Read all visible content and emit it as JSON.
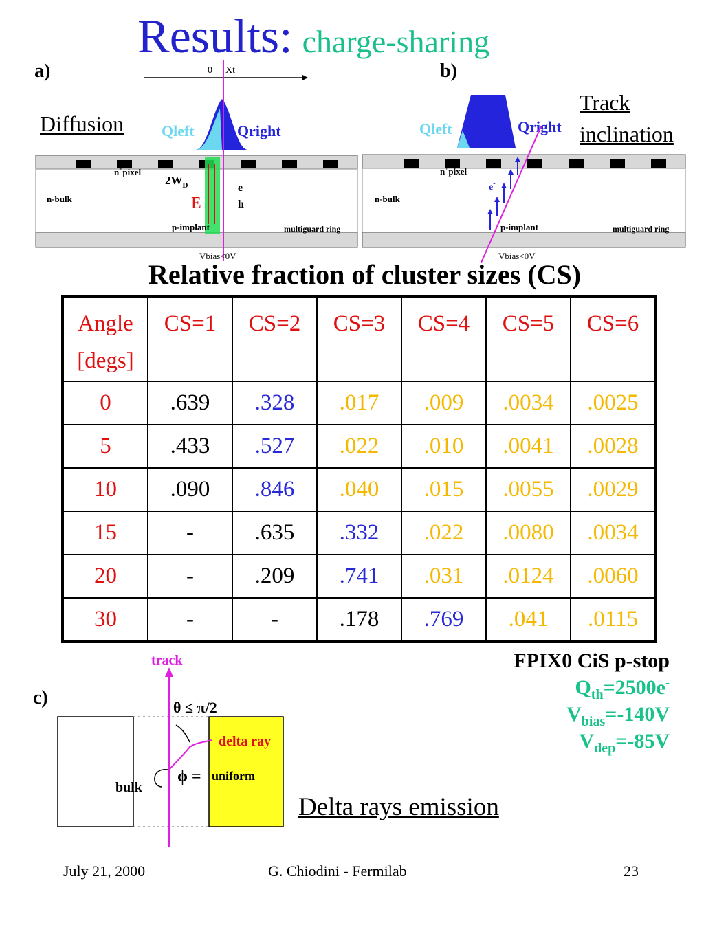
{
  "title": {
    "main": "Results:",
    "sub": "charge-sharing"
  },
  "panel_a": {
    "label": "a)",
    "caption": "Diffusion",
    "axis_zero": "0",
    "axis_label": "Xt",
    "qleft": "Qleft",
    "qright": "Qright",
    "npixel_n": "n",
    "npixel_plus": "+",
    "npixel_rest": "pixel",
    "nbulk": "n-bulk",
    "wd_main": "2W",
    "wd_sub": "D",
    "e_field": "E",
    "e_label": "e",
    "h_label": "h",
    "p_implant": "p-implant",
    "multiguard": "multiguard ring",
    "vbias": "Vbias<0V"
  },
  "panel_b": {
    "label": "b)",
    "caption_line1": "Track",
    "caption_line2": "inclination",
    "qleft": "Qleft",
    "qright": "Qright",
    "npixel_n": "n",
    "npixel_plus": "+",
    "npixel_rest": "pixel",
    "nbulk": "n-bulk",
    "e_minus": "e",
    "e_minus_sup": "-",
    "p_implant": "p-implant",
    "multiguard": "multiguard ring",
    "vbias": "Vbias<0V"
  },
  "table": {
    "title": "Relative fraction of cluster sizes (CS)",
    "headers": [
      "Angle [degs]",
      "CS=1",
      "CS=2",
      "CS=3",
      "CS=4",
      "CS=5",
      "CS=6"
    ],
    "header_angle_line1": "Angle",
    "header_angle_line2": "[degs]",
    "rows": [
      {
        "angle": "0",
        "cells": [
          ".639",
          ".328",
          ".017",
          ".009",
          ".0034",
          ".0025"
        ]
      },
      {
        "angle": "5",
        "cells": [
          ".433",
          ".527",
          ".022",
          ".010",
          ".0041",
          ".0028"
        ]
      },
      {
        "angle": "10",
        "cells": [
          ".090",
          ".846",
          ".040",
          ".015",
          ".0055",
          ".0029"
        ]
      },
      {
        "angle": "15",
        "cells": [
          "-",
          ".635",
          ".332",
          ".022",
          ".0080",
          ".0034"
        ]
      },
      {
        "angle": "20",
        "cells": [
          "-",
          ".209",
          ".741",
          ".031",
          ".0124",
          ".0060"
        ]
      },
      {
        "angle": "30",
        "cells": [
          "-",
          "-",
          ".178",
          ".769",
          ".041",
          ".0115"
        ]
      }
    ]
  },
  "conditions": {
    "device": "FPIX0 CiS p-stop",
    "qth_main": "Q",
    "qth_sub": "th",
    "qth_value": "=2500e",
    "qth_sup": "-",
    "vbias_main": "V",
    "vbias_sub": "bias",
    "vbias_value": "=-140V",
    "vdep_main": "V",
    "vdep_sub": "dep",
    "vdep_value": "=-85V"
  },
  "panel_c": {
    "label": "c)",
    "track": "track",
    "theta": "θ ≤ π/2",
    "delta_ray": "delta ray",
    "phi": "ϕ =",
    "uniform": "uniform",
    "bulk": "bulk",
    "caption": "Delta rays emission"
  },
  "footer": {
    "date": "July 21, 2000",
    "author": "G. Chiodini - Fermilab",
    "page": "23"
  },
  "colors": {
    "title_blue": "#2323cc",
    "title_green": "#1abf8c",
    "header_red": "#e01010",
    "diag_blue": "#2929d6",
    "yellow": "#f5b800",
    "conditions_green": "#19c28a",
    "magenta": "#e020e0"
  }
}
